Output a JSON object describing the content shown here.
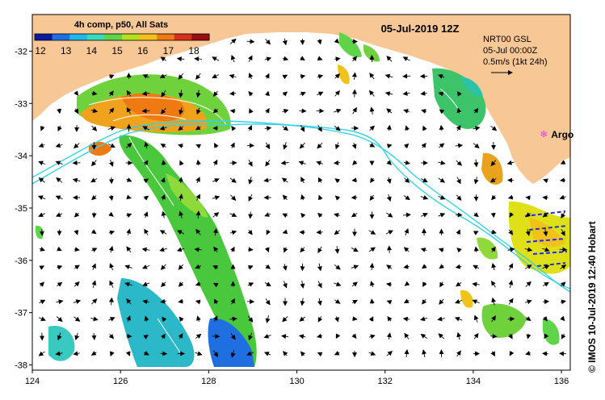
{
  "title": "05-Jul-2019 12Z",
  "colorbar": {
    "title": "4h comp, p50, All Sats",
    "labels": [
      "12",
      "13",
      "14",
      "15",
      "16",
      "17",
      "18"
    ],
    "colors": [
      "#0a1a9c",
      "#1f6fe0",
      "#22b5e8",
      "#39d9b8",
      "#5fd34a",
      "#b5e01e",
      "#f2c21a",
      "#f07a12",
      "#d9301a",
      "#9a0e12"
    ]
  },
  "current_info": {
    "line1": "NRT00 GSL",
    "line2": "05-Jul 00:00Z",
    "line3": "0.5m/s (1kt 24h)"
  },
  "marker": {
    "label": "Argo",
    "color": "#ff33ff",
    "lon": 135.6,
    "lat": -33.6
  },
  "axes": {
    "x_ticks": [
      "124",
      "126",
      "128",
      "130",
      "132",
      "134",
      "136"
    ],
    "y_ticks": [
      "-32",
      "-33",
      "-34",
      "-35",
      "-36",
      "-37",
      "-38"
    ],
    "xlim": [
      124,
      136.2
    ],
    "ylim": [
      -38.1,
      -31.3
    ]
  },
  "credit": "© IMOS 10-Jul-2019 12:40 Hobart",
  "colors": {
    "land": "#f8c796",
    "ocean": "#ffffff",
    "current_line": "#34d2e6",
    "contour": "#ffffff"
  }
}
